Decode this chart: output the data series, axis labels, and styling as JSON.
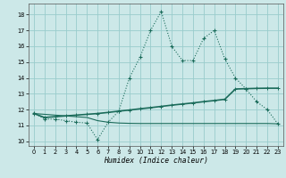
{
  "xlabel": "Humidex (Indice chaleur)",
  "bg_color": "#cce8e8",
  "grid_color": "#99cccc",
  "line_color": "#1a6b5a",
  "xlim": [
    -0.5,
    23.5
  ],
  "ylim": [
    9.7,
    18.7
  ],
  "ytick_vals": [
    10,
    11,
    12,
    13,
    14,
    15,
    16,
    17,
    18
  ],
  "xtick_vals": [
    0,
    1,
    2,
    3,
    4,
    5,
    6,
    7,
    8,
    9,
    10,
    11,
    12,
    13,
    14,
    15,
    16,
    17,
    18,
    19,
    20,
    21,
    22,
    23
  ],
  "dotted_x": [
    0,
    1,
    2,
    3,
    4,
    5,
    6,
    7,
    8,
    9,
    10,
    11,
    12,
    13,
    14,
    15,
    16,
    17,
    18,
    19,
    20,
    21,
    22,
    23
  ],
  "dotted_y": [
    11.8,
    11.4,
    11.4,
    11.3,
    11.2,
    11.15,
    10.1,
    11.2,
    11.9,
    14.0,
    15.3,
    17.0,
    18.2,
    16.0,
    15.1,
    15.1,
    16.5,
    17.0,
    15.2,
    14.0,
    13.3,
    12.5,
    12.0,
    11.1
  ],
  "rising_x": [
    0,
    1,
    2,
    3,
    4,
    5,
    6,
    7,
    8,
    9,
    10,
    11,
    12,
    13,
    14,
    15,
    16,
    17,
    18,
    19,
    20,
    21,
    22,
    23
  ],
  "rising_y": [
    11.75,
    11.5,
    11.55,
    11.6,
    11.65,
    11.7,
    11.75,
    11.82,
    11.9,
    11.97,
    12.05,
    12.12,
    12.2,
    12.28,
    12.35,
    12.42,
    12.5,
    12.57,
    12.65,
    13.3,
    13.32,
    13.34,
    13.35,
    13.35
  ],
  "flat_x": [
    0,
    5,
    6,
    7,
    8,
    9,
    10,
    11,
    12,
    13,
    14,
    15,
    16,
    17,
    18,
    19,
    20,
    21,
    22,
    23
  ],
  "flat_y": [
    11.75,
    11.5,
    11.3,
    11.2,
    11.15,
    11.13,
    11.12,
    11.12,
    11.12,
    11.12,
    11.12,
    11.12,
    11.12,
    11.12,
    11.12,
    11.12,
    11.12,
    11.12,
    11.12,
    11.1
  ]
}
